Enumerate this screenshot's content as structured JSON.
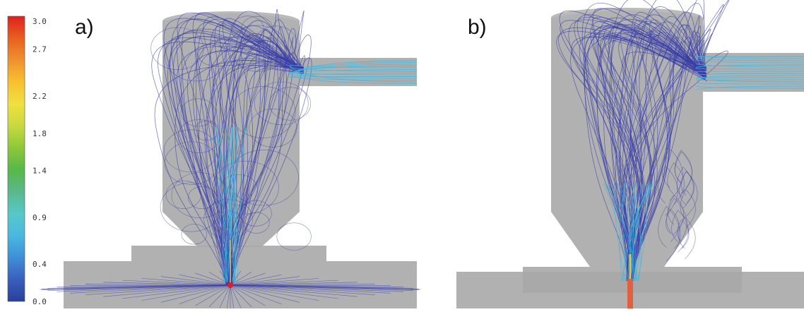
{
  "colorbar": {
    "ticks": [
      "3.0",
      "2.7",
      "2.2",
      "1.8",
      "1.4",
      "0.9",
      "0.4",
      "0.0"
    ],
    "tick_values": [
      3.0,
      2.7,
      2.2,
      1.8,
      1.4,
      0.9,
      0.4,
      0.0
    ],
    "range": [
      0.0,
      3.0
    ],
    "colors": [
      "#2a3f9a",
      "#3a5fbf",
      "#3f8fd8",
      "#4ab8e0",
      "#58c8c8",
      "#5ab88a",
      "#58b848",
      "#8cc83a",
      "#c8d840",
      "#f0e040",
      "#f8c030",
      "#f09030",
      "#e86020",
      "#e02020"
    ]
  },
  "panels": [
    {
      "label": "a)"
    },
    {
      "label": "b)"
    }
  ],
  "streamline_colors": {
    "low": "#3a3ea8",
    "mid": "#3ab8e0",
    "high": "#e8e040",
    "peak": "#e02020"
  },
  "geometry_color": "#a9a9a9"
}
